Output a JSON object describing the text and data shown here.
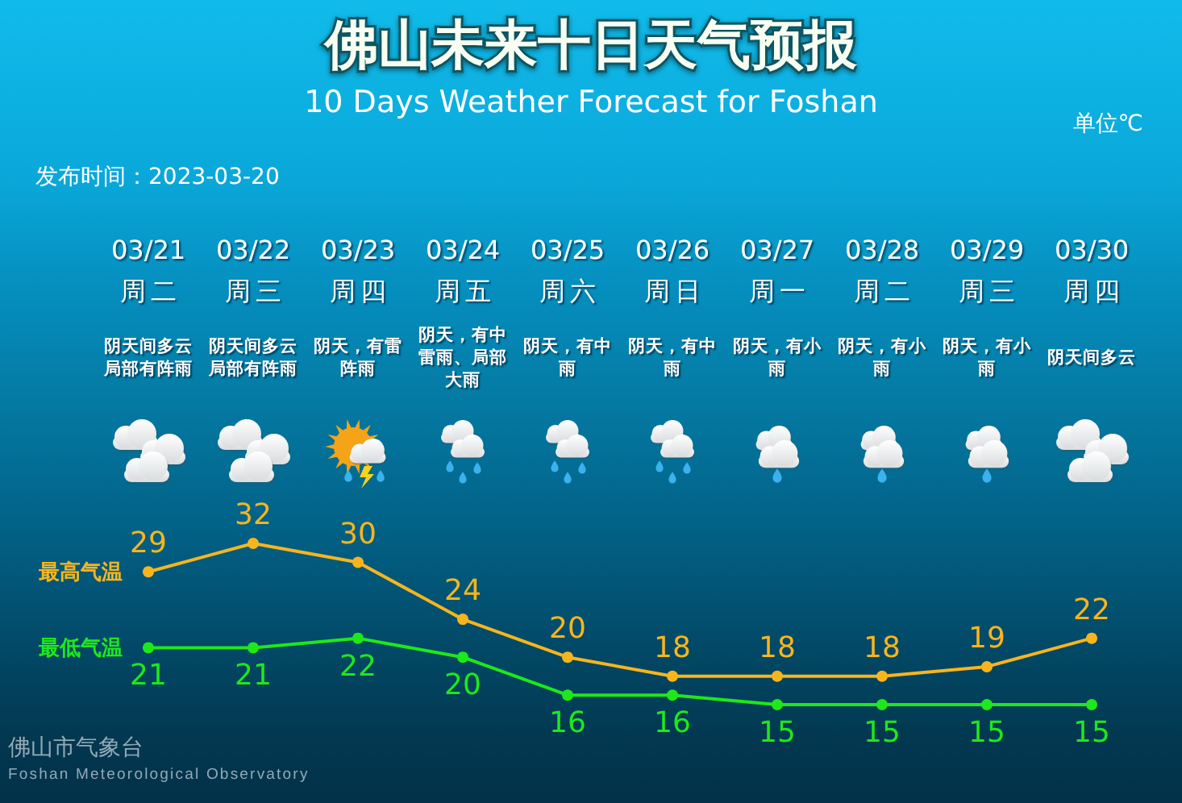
{
  "chart_data": {
    "type": "line",
    "title": "佛山未来十日天气预报",
    "subtitle": "10 Days Weather Forecast for Foshan",
    "categories": [
      "03/21",
      "03/22",
      "03/23",
      "03/24",
      "03/25",
      "03/26",
      "03/27",
      "03/28",
      "03/29",
      "03/30"
    ],
    "series": [
      {
        "name": "最高气温",
        "color": "#f7b51d",
        "values": [
          29,
          32,
          30,
          24,
          20,
          18,
          18,
          18,
          19,
          22
        ]
      },
      {
        "name": "最低气温",
        "color": "#1ee81a",
        "values": [
          21,
          21,
          22,
          20,
          16,
          16,
          15,
          15,
          15,
          15
        ]
      }
    ],
    "data_labels": true,
    "marker": "circle",
    "line_style": "solid",
    "tick_labels": "x",
    "annotations": [
      "单位℃",
      "发布时间：2023-03-20",
      "周二",
      "阴天间多云局部有阵雨",
      "周三",
      "阴天间多云局部有阵雨",
      "周四",
      "阴天，有雷阵雨",
      "周五",
      "阴天，有中雷雨、局部大雨",
      "周六",
      "阴天，有中雨",
      "周日",
      "阴天，有中雨",
      "周一",
      "阴天，有小雨",
      "周二",
      "阴天，有小雨",
      "周三",
      "阴天，有小雨",
      "周四",
      "阴天间多云",
      "佛山市气象台",
      "Foshan Meteorological Observatory"
    ]
  }
}
